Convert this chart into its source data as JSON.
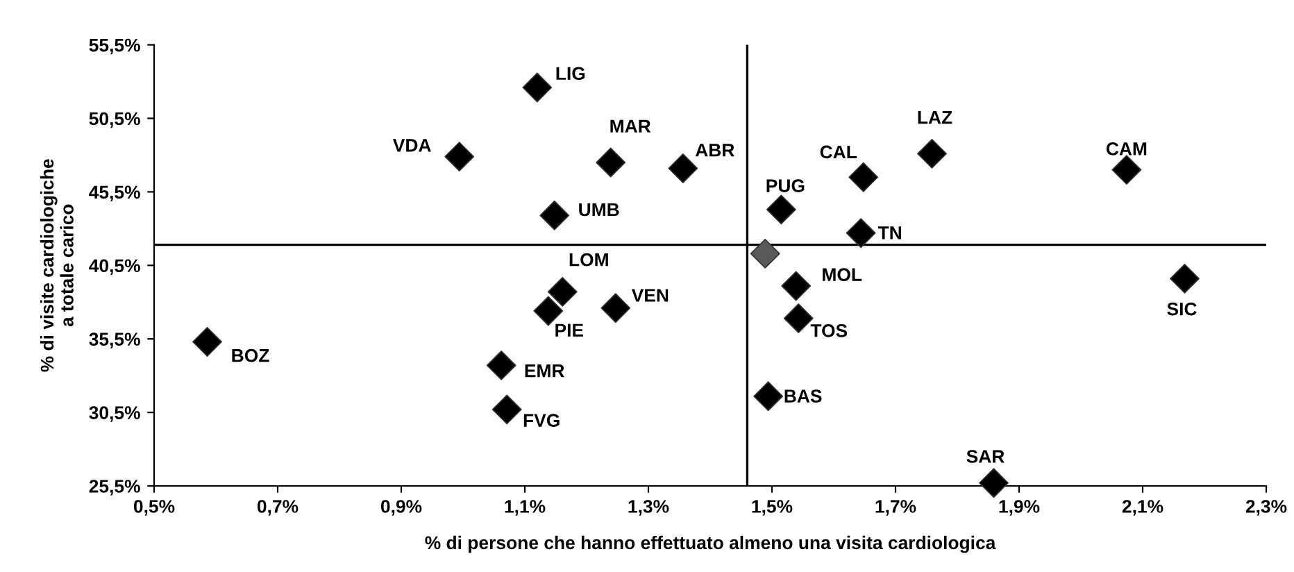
{
  "chart_data": {
    "type": "scatter",
    "xlabel": "% di persone che hanno effettuato almeno una visita cardiologica",
    "ylabel": "% di visite cardiologiche\na totale carico",
    "marker": "diamond",
    "grid": false,
    "legend": false,
    "xlim": [
      0.5,
      2.3
    ],
    "xticks": [
      {
        "value": 0.5,
        "label": "0,5%"
      },
      {
        "value": 0.7,
        "label": "0,7%"
      },
      {
        "value": 0.9,
        "label": "0,9%"
      },
      {
        "value": 1.1,
        "label": "1,1%"
      },
      {
        "value": 1.3,
        "label": "1,3%"
      },
      {
        "value": 1.5,
        "label": "1,5%"
      },
      {
        "value": 1.7,
        "label": "1,7%"
      },
      {
        "value": 1.9,
        "label": "1,9%"
      },
      {
        "value": 2.1,
        "label": "2,1%"
      },
      {
        "value": 2.3,
        "label": "2,3%"
      }
    ],
    "ylim": [
      25.5,
      55.5
    ],
    "yticks": [
      {
        "value": 25.5,
        "label": "25,5%"
      },
      {
        "value": 30.5,
        "label": "30,5%"
      },
      {
        "value": 35.5,
        "label": "35,5%"
      },
      {
        "value": 40.5,
        "label": "40,5%"
      },
      {
        "value": 45.5,
        "label": "45,5%"
      },
      {
        "value": 50.5,
        "label": "50,5%"
      },
      {
        "value": 55.5,
        "label": "55,5%"
      }
    ],
    "ref_lines": [
      {
        "axis": "x",
        "value": 1.46,
        "color": "#000000"
      },
      {
        "axis": "y",
        "value": 41.9,
        "color": "#000000"
      }
    ],
    "series": [
      {
        "color": "#000000",
        "x": [
          1.12,
          0.994,
          1.239,
          1.356,
          1.148,
          1.161,
          1.138,
          1.247,
          0.586,
          1.062,
          1.071,
          1.515,
          1.648,
          1.759,
          2.074,
          1.644,
          1.539,
          1.543,
          2.168,
          1.494,
          1.859
        ],
        "values": [
          52.6,
          47.9,
          47.5,
          47.1,
          43.9,
          38.7,
          37.4,
          37.6,
          35.3,
          33.7,
          30.7,
          44.3,
          46.5,
          48.1,
          47.0,
          42.7,
          39.1,
          36.9,
          39.6,
          31.6,
          25.7
        ]
      },
      {
        "color": "#595959",
        "x": [
          1.489
        ],
        "values": [
          41.3
        ]
      }
    ],
    "annotations": [
      {
        "text": "LIG",
        "x": 1.12,
        "y": 52.6
      },
      {
        "text": "VDA",
        "x": 0.994,
        "y": 47.9
      },
      {
        "text": "MAR",
        "x": 1.239,
        "y": 47.5
      },
      {
        "text": "ABR",
        "x": 1.356,
        "y": 47.1
      },
      {
        "text": "UMB",
        "x": 1.148,
        "y": 43.9
      },
      {
        "text": "LOM",
        "x": 1.161,
        "y": 38.7
      },
      {
        "text": "PIE",
        "x": 1.138,
        "y": 37.4
      },
      {
        "text": "VEN",
        "x": 1.247,
        "y": 37.6
      },
      {
        "text": "BOZ",
        "x": 0.586,
        "y": 35.3
      },
      {
        "text": "EMR",
        "x": 1.062,
        "y": 33.7
      },
      {
        "text": "FVG",
        "x": 1.071,
        "y": 30.7
      },
      {
        "text": "PUG",
        "x": 1.515,
        "y": 44.3
      },
      {
        "text": "CAL",
        "x": 1.648,
        "y": 46.5
      },
      {
        "text": "LAZ",
        "x": 1.759,
        "y": 48.1
      },
      {
        "text": "CAM",
        "x": 2.074,
        "y": 47.0
      },
      {
        "text": "TN",
        "x": 1.644,
        "y": 42.7
      },
      {
        "text": "MOL",
        "x": 1.539,
        "y": 39.1
      },
      {
        "text": "TOS",
        "x": 1.543,
        "y": 36.9
      },
      {
        "text": "SIC",
        "x": 2.168,
        "y": 39.6
      },
      {
        "text": "BAS",
        "x": 1.494,
        "y": 31.6
      },
      {
        "text": "SAR",
        "x": 1.859,
        "y": 25.7
      }
    ]
  }
}
